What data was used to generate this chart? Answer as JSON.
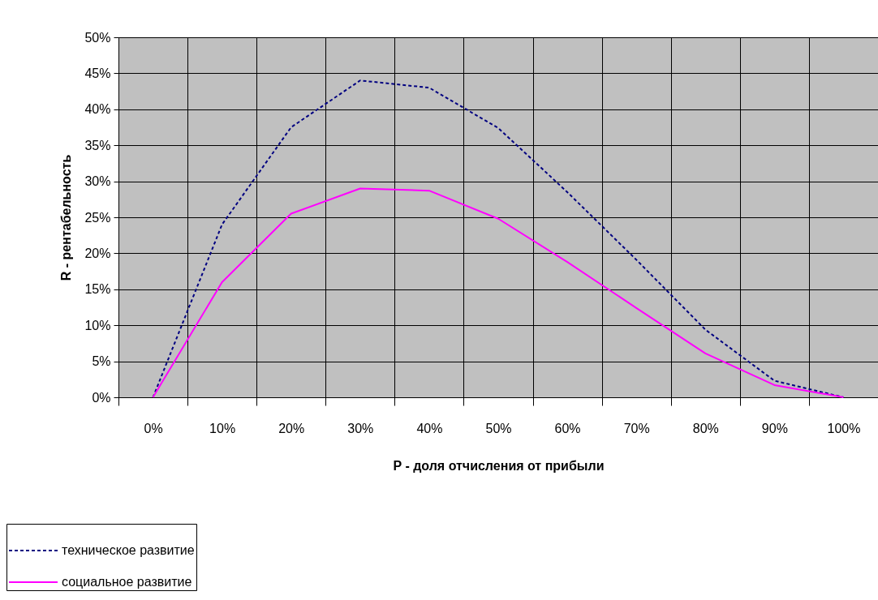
{
  "chart_data": {
    "type": "line",
    "xlabel": "P - доля отчисления от прибыли",
    "ylabel": "R - рентабельность",
    "categories": [
      "0%",
      "10%",
      "20%",
      "30%",
      "40%",
      "50%",
      "60%",
      "70%",
      "80%",
      "90%",
      "100%"
    ],
    "series": [
      {
        "name": "техническое развитие",
        "color": "#000080",
        "line_style": "dashed",
        "values": [
          0,
          24,
          37.5,
          44,
          43,
          37.4,
          28.5,
          19.1,
          9.4,
          2.3,
          0
        ]
      },
      {
        "name": "социальное развитие",
        "color": "#ff00ff",
        "line_style": "solid",
        "values": [
          0,
          16,
          25.5,
          29,
          28.7,
          24.8,
          18.8,
          12.4,
          6.1,
          1.7,
          0
        ]
      }
    ],
    "ylim": [
      0,
      50
    ],
    "yticks": [
      {
        "value": 0,
        "label": "0%"
      },
      {
        "value": 5,
        "label": "5%"
      },
      {
        "value": 10,
        "label": "10%"
      },
      {
        "value": 15,
        "label": "15%"
      },
      {
        "value": 20,
        "label": "20%"
      },
      {
        "value": 25,
        "label": "25%"
      },
      {
        "value": 30,
        "label": "30%"
      },
      {
        "value": 35,
        "label": "35%"
      },
      {
        "value": 40,
        "label": "40%"
      },
      {
        "value": 45,
        "label": "45%"
      },
      {
        "value": 50,
        "label": "50%"
      }
    ],
    "grid": true,
    "legend": "bottom left",
    "marker": "none"
  }
}
